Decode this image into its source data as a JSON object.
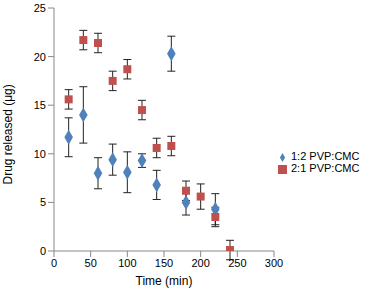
{
  "chart_data": {
    "type": "scatter",
    "x_label": "Time (min)",
    "y_label": "Drug released (μg)",
    "xlim": [
      0,
      300
    ],
    "xticks": [
      0,
      50,
      100,
      150,
      200,
      250,
      300
    ],
    "ylim": [
      0,
      25
    ],
    "yticks": [
      0,
      5,
      10,
      15,
      20,
      25
    ],
    "grid": false,
    "legend": "right",
    "series": [
      {
        "name": "1:2 PVP:CMC",
        "color": "#4f81bd",
        "marker": "diamond",
        "x": [
          20,
          40,
          60,
          80,
          100,
          120,
          140,
          160,
          180,
          220
        ],
        "values": [
          11.7,
          14.0,
          8.0,
          9.4,
          8.1,
          9.3,
          6.8,
          20.3,
          5.0,
          4.3
        ],
        "errors": [
          2.0,
          2.9,
          1.6,
          1.6,
          2.1,
          0.7,
          1.5,
          1.8,
          1.3,
          1.6
        ]
      },
      {
        "name": "2:1 PVP:CMC",
        "color": "#c0504d",
        "marker": "square",
        "x": [
          20,
          40,
          60,
          80,
          100,
          120,
          140,
          160,
          180,
          200,
          220,
          240
        ],
        "values": [
          15.6,
          21.7,
          21.4,
          17.5,
          18.7,
          14.5,
          10.6,
          10.8,
          6.2,
          5.6,
          3.5,
          0.1
        ],
        "errors": [
          1.0,
          1.0,
          1.0,
          1.0,
          1.0,
          1.0,
          1.0,
          1.0,
          1.0,
          1.3,
          1.0,
          1.0
        ]
      }
    ]
  }
}
